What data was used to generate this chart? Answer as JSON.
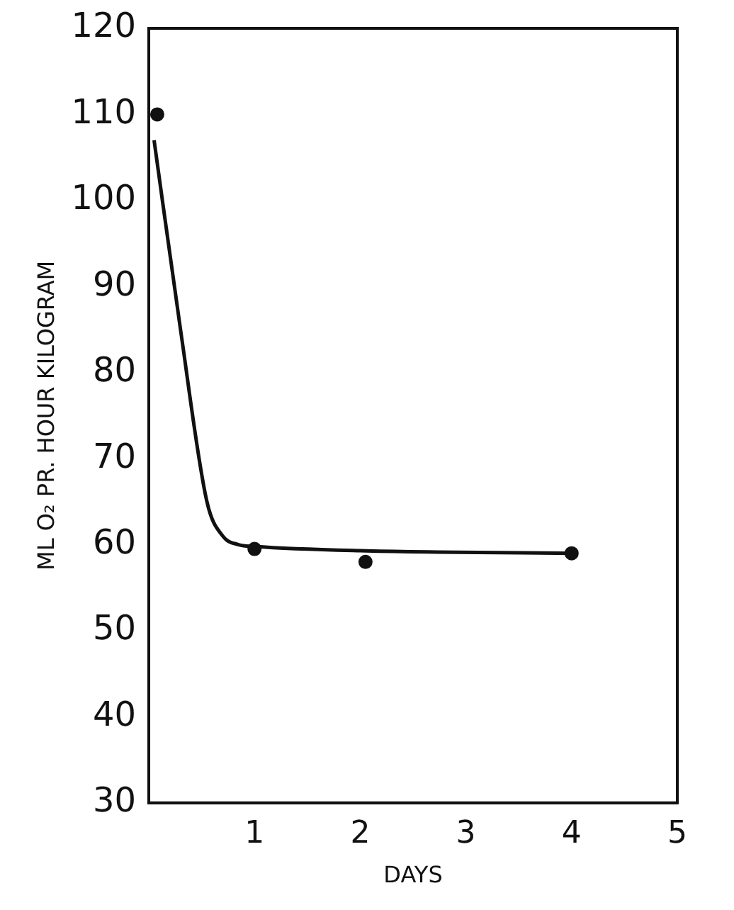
{
  "chart_data": {
    "type": "scatter",
    "xlabel": "DAYS",
    "ylabel": "ML O₂ PR. HOUR KILOGRAM",
    "xlim": [
      0,
      5
    ],
    "xticks": [
      1,
      2,
      3,
      4,
      5
    ],
    "ylim": [
      30,
      120
    ],
    "yticks": [
      30,
      40,
      50,
      60,
      70,
      80,
      90,
      100,
      110,
      120
    ],
    "grid": false,
    "legend": false,
    "marker": "circle",
    "series": [
      {
        "color": "#111111",
        "x": [
          0.08,
          1,
          2.05,
          4
        ],
        "values": [
          110,
          59.5,
          58,
          59
        ]
      },
      {
        "type": "line",
        "color": "#111111",
        "marker": "none",
        "x": [
          0.05,
          0.3,
          0.55,
          0.7,
          0.85,
          1,
          2,
          4
        ],
        "values": [
          107,
          85,
          65,
          61,
          60,
          59.8,
          59.3,
          59
        ]
      }
    ]
  }
}
